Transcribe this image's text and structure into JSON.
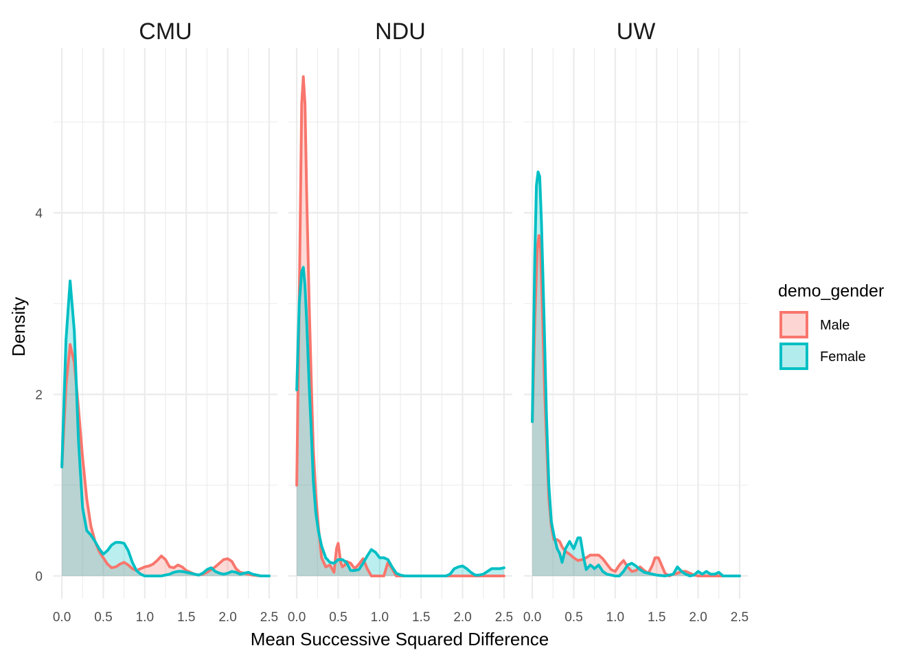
{
  "chart_data": {
    "type": "area",
    "xlabel": "Mean Successive Squared Difference",
    "ylabel": "Density",
    "xlim": [
      -0.1,
      2.6
    ],
    "ylim": [
      -0.27,
      5.85
    ],
    "x_ticks": [
      0.0,
      0.5,
      1.0,
      1.5,
      2.0,
      2.5
    ],
    "x_tick_labels": [
      "0.0",
      "0.5",
      "1.0",
      "1.5",
      "2.0",
      "2.5"
    ],
    "y_ticks": [
      0,
      2,
      4
    ],
    "y_tick_labels": [
      "0",
      "2",
      "4"
    ],
    "grid": true,
    "legend": {
      "title": "demo_gender",
      "position": "right",
      "entries": [
        {
          "label": "Male",
          "color": "#F8766D"
        },
        {
          "label": "Female",
          "color": "#00BFC4"
        }
      ]
    },
    "panels": [
      {
        "title": "CMU",
        "series": [
          {
            "name": "Male",
            "color": "#F8766D",
            "x": [
              0,
              0.05,
              0.1,
              0.15,
              0.2,
              0.25,
              0.3,
              0.35,
              0.4,
              0.45,
              0.5,
              0.55,
              0.6,
              0.65,
              0.7,
              0.75,
              0.8,
              0.85,
              0.9,
              0.95,
              1.0,
              1.05,
              1.1,
              1.15,
              1.2,
              1.25,
              1.3,
              1.35,
              1.4,
              1.45,
              1.5,
              1.55,
              1.6,
              1.65,
              1.7,
              1.75,
              1.8,
              1.85,
              1.9,
              1.95,
              2.0,
              2.05,
              2.1,
              2.15,
              2.2,
              2.25,
              2.3,
              2.4,
              2.5
            ],
            "y": [
              1.2,
              2.1,
              2.55,
              2.35,
              1.85,
              1.3,
              0.85,
              0.55,
              0.38,
              0.27,
              0.2,
              0.13,
              0.09,
              0.1,
              0.13,
              0.15,
              0.12,
              0.08,
              0.06,
              0.08,
              0.1,
              0.11,
              0.13,
              0.17,
              0.22,
              0.18,
              0.1,
              0.09,
              0.12,
              0.1,
              0.06,
              0.04,
              0.02,
              0.01,
              0.02,
              0.04,
              0.07,
              0.1,
              0.14,
              0.18,
              0.19,
              0.16,
              0.08,
              0.04,
              0.03,
              0.02,
              0.01,
              0.0,
              0.0
            ]
          },
          {
            "name": "Female",
            "color": "#00BFC4",
            "x": [
              0,
              0.05,
              0.1,
              0.15,
              0.2,
              0.25,
              0.3,
              0.35,
              0.4,
              0.45,
              0.5,
              0.55,
              0.6,
              0.65,
              0.7,
              0.75,
              0.8,
              0.85,
              0.9,
              0.95,
              1.0,
              1.05,
              1.1,
              1.15,
              1.2,
              1.25,
              1.3,
              1.35,
              1.4,
              1.45,
              1.5,
              1.55,
              1.6,
              1.65,
              1.7,
              1.75,
              1.8,
              1.85,
              1.9,
              1.95,
              2.0,
              2.05,
              2.1,
              2.15,
              2.2,
              2.25,
              2.3,
              2.4,
              2.5
            ],
            "y": [
              1.2,
              2.6,
              3.25,
              2.7,
              1.5,
              0.75,
              0.5,
              0.45,
              0.38,
              0.3,
              0.24,
              0.28,
              0.34,
              0.37,
              0.37,
              0.36,
              0.28,
              0.15,
              0.06,
              0.02,
              0.0,
              0.0,
              0.0,
              0.0,
              0.0,
              0.01,
              0.02,
              0.04,
              0.05,
              0.05,
              0.04,
              0.03,
              0.02,
              0.01,
              0.03,
              0.07,
              0.09,
              0.05,
              0.03,
              0.02,
              0.03,
              0.05,
              0.04,
              0.02,
              0.03,
              0.04,
              0.02,
              0.0,
              0.0
            ]
          }
        ]
      },
      {
        "title": "NDU",
        "series": [
          {
            "name": "Male",
            "color": "#F8766D",
            "x": [
              0,
              0.03,
              0.06,
              0.08,
              0.1,
              0.12,
              0.15,
              0.18,
              0.2,
              0.23,
              0.26,
              0.3,
              0.35,
              0.4,
              0.45,
              0.48,
              0.5,
              0.53,
              0.55,
              0.58,
              0.6,
              0.65,
              0.7,
              0.75,
              0.8,
              0.85,
              0.9,
              0.95,
              1.0,
              1.05,
              1.1,
              1.15,
              1.2,
              1.3,
              1.5,
              2.0,
              2.5
            ],
            "y": [
              1.0,
              3.0,
              5.2,
              5.5,
              5.2,
              4.2,
              3.0,
              2.0,
              1.4,
              0.9,
              0.55,
              0.2,
              0.1,
              0.12,
              0.04,
              0.3,
              0.36,
              0.15,
              0.1,
              0.12,
              0.16,
              0.14,
              0.08,
              0.13,
              0.19,
              0.08,
              0.0,
              0.0,
              0.0,
              0.0,
              0.15,
              0.08,
              0.0,
              0.0,
              0.0,
              0.0,
              0.0
            ]
          },
          {
            "name": "Female",
            "color": "#00BFC4",
            "x": [
              0,
              0.03,
              0.06,
              0.08,
              0.1,
              0.12,
              0.15,
              0.18,
              0.2,
              0.23,
              0.26,
              0.3,
              0.35,
              0.4,
              0.45,
              0.5,
              0.55,
              0.6,
              0.65,
              0.7,
              0.75,
              0.8,
              0.85,
              0.9,
              0.95,
              1.0,
              1.05,
              1.1,
              1.15,
              1.2,
              1.25,
              1.3,
              1.5,
              1.8,
              1.85,
              1.9,
              1.95,
              2.0,
              2.05,
              2.1,
              2.15,
              2.2,
              2.25,
              2.3,
              2.35,
              2.4,
              2.45,
              2.5
            ],
            "y": [
              2.05,
              3.0,
              3.35,
              3.4,
              3.2,
              2.8,
              2.1,
              1.5,
              1.05,
              0.7,
              0.5,
              0.33,
              0.2,
              0.15,
              0.14,
              0.18,
              0.18,
              0.15,
              0.06,
              0.06,
              0.07,
              0.14,
              0.22,
              0.29,
              0.26,
              0.2,
              0.2,
              0.18,
              0.1,
              0.03,
              0.01,
              0.0,
              0.0,
              0.0,
              0.02,
              0.08,
              0.1,
              0.11,
              0.08,
              0.04,
              0.01,
              0.01,
              0.02,
              0.05,
              0.08,
              0.08,
              0.08,
              0.09
            ]
          }
        ]
      },
      {
        "title": "UW",
        "series": [
          {
            "name": "Male",
            "color": "#F8766D",
            "x": [
              0,
              0.03,
              0.06,
              0.08,
              0.1,
              0.12,
              0.15,
              0.18,
              0.2,
              0.23,
              0.26,
              0.3,
              0.33,
              0.36,
              0.4,
              0.45,
              0.5,
              0.55,
              0.6,
              0.65,
              0.7,
              0.75,
              0.8,
              0.85,
              0.9,
              0.95,
              1.0,
              1.05,
              1.1,
              1.15,
              1.2,
              1.25,
              1.3,
              1.35,
              1.4,
              1.45,
              1.48,
              1.52,
              1.55,
              1.6,
              1.65,
              1.7,
              1.75,
              1.8,
              1.85,
              1.9,
              1.95,
              2.0,
              2.05,
              2.1,
              2.2,
              2.3,
              2.5
            ],
            "y": [
              1.7,
              2.8,
              3.6,
              3.75,
              3.6,
              3.0,
              2.0,
              1.3,
              0.85,
              0.55,
              0.4,
              0.4,
              0.38,
              0.32,
              0.27,
              0.24,
              0.2,
              0.17,
              0.18,
              0.2,
              0.23,
              0.23,
              0.23,
              0.19,
              0.13,
              0.07,
              0.05,
              0.12,
              0.17,
              0.1,
              0.05,
              0.06,
              0.1,
              0.06,
              0.03,
              0.12,
              0.2,
              0.2,
              0.14,
              0.03,
              0.0,
              0.02,
              0.03,
              0.05,
              0.05,
              0.03,
              0.01,
              0.0,
              0.0,
              0.0,
              0.0,
              0.0,
              0.0
            ]
          },
          {
            "name": "Female",
            "color": "#00BFC4",
            "x": [
              0,
              0.03,
              0.05,
              0.07,
              0.09,
              0.11,
              0.14,
              0.17,
              0.2,
              0.23,
              0.26,
              0.3,
              0.33,
              0.36,
              0.4,
              0.45,
              0.5,
              0.55,
              0.58,
              0.62,
              0.65,
              0.7,
              0.73,
              0.75,
              0.8,
              0.85,
              0.9,
              0.95,
              1.0,
              1.05,
              1.1,
              1.15,
              1.2,
              1.25,
              1.3,
              1.35,
              1.4,
              1.45,
              1.5,
              1.6,
              1.7,
              1.75,
              1.8,
              1.85,
              1.9,
              1.95,
              2.0,
              2.05,
              2.1,
              2.15,
              2.2,
              2.25,
              2.3,
              2.5
            ],
            "y": [
              1.7,
              3.5,
              4.3,
              4.45,
              4.4,
              3.9,
              2.9,
              1.8,
              1.0,
              0.6,
              0.45,
              0.3,
              0.25,
              0.15,
              0.3,
              0.38,
              0.3,
              0.42,
              0.42,
              0.2,
              0.07,
              0.12,
              0.1,
              0.08,
              0.12,
              0.05,
              0.02,
              0.01,
              0.0,
              0.0,
              0.05,
              0.12,
              0.14,
              0.11,
              0.07,
              0.04,
              0.03,
              0.02,
              0.01,
              0.0,
              0.02,
              0.1,
              0.05,
              0.02,
              0.0,
              0.01,
              0.05,
              0.02,
              0.05,
              0.02,
              0.02,
              0.04,
              0.0,
              0.0
            ]
          }
        ]
      }
    ]
  }
}
